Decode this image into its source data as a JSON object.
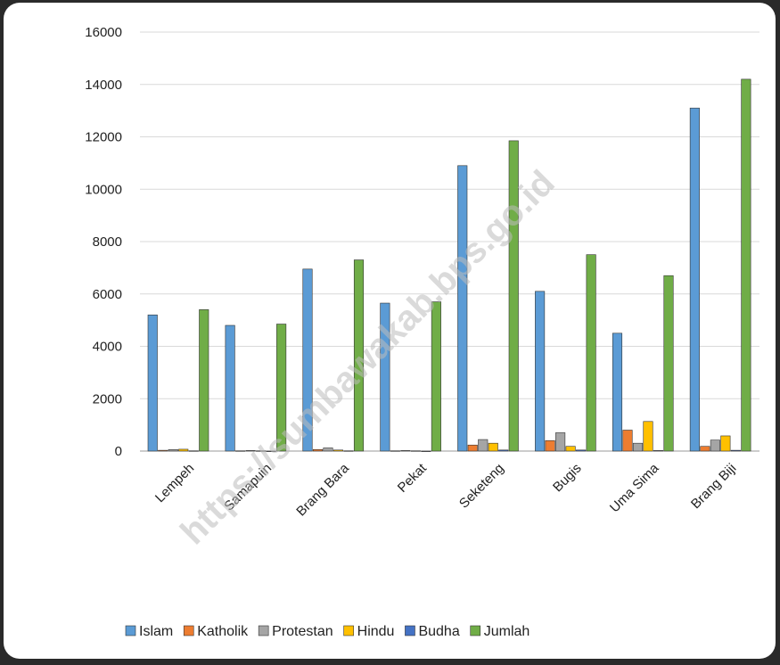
{
  "chart_data": {
    "type": "bar",
    "categories": [
      "Lempeh",
      "Samapuin",
      "Brang Bara",
      "Pekat",
      "Seketeng",
      "Bugis",
      "Uma Sima",
      "Brang Biji"
    ],
    "series": [
      {
        "name": "Islam",
        "color": "#5b9bd5",
        "values": [
          5200,
          4800,
          6950,
          5650,
          10900,
          6100,
          4500,
          13100
        ]
      },
      {
        "name": "Katholik",
        "color": "#ed7d31",
        "values": [
          30,
          10,
          60,
          10,
          230,
          400,
          800,
          180
        ]
      },
      {
        "name": "Protestan",
        "color": "#a5a5a5",
        "values": [
          60,
          20,
          120,
          20,
          440,
          700,
          300,
          420
        ]
      },
      {
        "name": "Hindu",
        "color": "#ffc000",
        "values": [
          70,
          10,
          40,
          10,
          300,
          180,
          1130,
          580
        ]
      },
      {
        "name": "Budha",
        "color": "#4472c4",
        "values": [
          10,
          0,
          10,
          0,
          40,
          40,
          20,
          30
        ]
      },
      {
        "name": "Jumlah",
        "color": "#70ad47",
        "values": [
          5400,
          4850,
          7300,
          5700,
          11850,
          7500,
          6700,
          14200
        ]
      }
    ],
    "yticks": [
      "0",
      "2000",
      "4000",
      "6000",
      "8000",
      "10000",
      "12000",
      "14000",
      "16000"
    ],
    "ylim": [
      0,
      16000
    ],
    "grid": true,
    "legend_position": "bottom",
    "title": "",
    "xlabel": "",
    "ylabel": ""
  },
  "watermark": "https://sumbawakab.bps.go.id"
}
